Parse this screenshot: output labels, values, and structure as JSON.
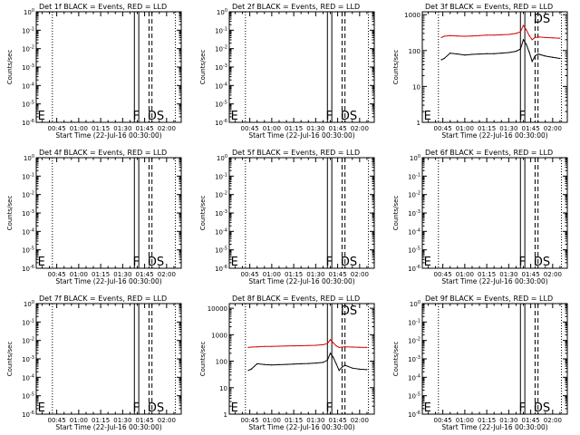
{
  "colors": {
    "events": "#000000",
    "lld": "#d40000",
    "axis": "#000000",
    "background": "#ffffff"
  },
  "chart_data": [
    {
      "type": "line",
      "detector": "1f",
      "title": "Det 1f BLACK = Events, RED = LLD",
      "xlabel": "Start Time (22-Jul-16 00:30:00)",
      "ylabel": "Counts/sec",
      "x_tick_labels": [
        "00:45",
        "01:00",
        "01:15",
        "01:30",
        "01:45",
        "02:00"
      ],
      "y_tick_labels": [
        "10^-6",
        "10^-5",
        "10^-4",
        "10^-3",
        "10^-2",
        "10^-1",
        "10^0"
      ],
      "y_scale": "log",
      "ylim": [
        1e-06,
        1
      ],
      "xlim": [
        "00:31",
        "02:10"
      ],
      "solid_markers": [
        "01:38",
        "01:41"
      ],
      "dashed_markers": [
        "01:48",
        "01:50"
      ],
      "dotted_markers": [
        "00:42",
        "02:06"
      ],
      "marker_labels": [
        {
          "text": "E",
          "x": "00:32"
        },
        {
          "text": "F",
          "x": "01:37"
        },
        {
          "text": "DS",
          "x": "01:47"
        }
      ],
      "series": []
    },
    {
      "type": "line",
      "detector": "2f",
      "title": "Det 2f BLACK = Events, RED = LLD",
      "xlabel": "Start Time (22-Jul-16 00:30:00)",
      "ylabel": "Counts/sec",
      "x_tick_labels": [
        "00:45",
        "01:00",
        "01:15",
        "01:30",
        "01:45",
        "02:00"
      ],
      "y_tick_labels": [
        "10^-6",
        "10^-5",
        "10^-4",
        "10^-3",
        "10^-2",
        "10^-1",
        "10^0"
      ],
      "y_scale": "log",
      "ylim": [
        1e-06,
        1
      ],
      "xlim": [
        "00:31",
        "02:10"
      ],
      "solid_markers": [
        "01:38",
        "01:41"
      ],
      "dashed_markers": [
        "01:48",
        "01:50"
      ],
      "dotted_markers": [
        "00:42",
        "02:06"
      ],
      "marker_labels": [
        {
          "text": "E",
          "x": "00:32"
        },
        {
          "text": "F",
          "x": "01:37"
        },
        {
          "text": "DS",
          "x": "01:47"
        }
      ],
      "series": []
    },
    {
      "type": "line",
      "detector": "3f",
      "title": "Det 3f BLACK = Events, RED = LLD",
      "xlabel": "Start Time (22-Jul-16 00:30:00)",
      "ylabel": "Counts/sec",
      "x_tick_labels": [
        "00:45",
        "01:00",
        "01:15",
        "01:30",
        "01:45",
        "02:00"
      ],
      "y_tick_labels": [
        "1",
        "10",
        "100",
        "1000"
      ],
      "y_scale": "log",
      "ylim": [
        1,
        1200
      ],
      "xlim": [
        "00:31",
        "02:10"
      ],
      "solid_markers": [
        "01:38",
        "01:41"
      ],
      "dashed_markers": [
        "01:48",
        "01:50"
      ],
      "dotted_markers": [
        "00:42",
        "02:06"
      ],
      "marker_labels": [
        {
          "text": "E",
          "x": "00:32"
        },
        {
          "text": "F",
          "x": "01:37"
        },
        {
          "text": "DS",
          "x": "01:47"
        }
      ],
      "series": [
        {
          "color": "lld",
          "x": [
            "00:44",
            "00:46",
            "00:50",
            "00:55",
            "01:00",
            "01:05",
            "01:10",
            "01:15",
            "01:20",
            "01:25",
            "01:30",
            "01:35",
            "01:38",
            "01:40",
            "01:42",
            "01:44",
            "01:46",
            "01:48",
            "01:50",
            "01:55",
            "02:00",
            "02:05"
          ],
          "values": [
            230,
            250,
            260,
            255,
            250,
            255,
            260,
            270,
            270,
            275,
            280,
            300,
            330,
            500,
            380,
            260,
            200,
            230,
            240,
            230,
            225,
            220
          ]
        },
        {
          "color": "events",
          "x": [
            "00:44",
            "00:46",
            "00:50",
            "00:55",
            "01:00",
            "01:05",
            "01:10",
            "01:15",
            "01:20",
            "01:25",
            "01:30",
            "01:35",
            "01:38",
            "01:40",
            "01:42",
            "01:44",
            "01:46",
            "01:48",
            "01:50",
            "01:55",
            "02:00",
            "02:05"
          ],
          "values": [
            55,
            60,
            85,
            80,
            75,
            78,
            80,
            82,
            82,
            85,
            88,
            95,
            110,
            200,
            150,
            90,
            50,
            70,
            80,
            70,
            65,
            60
          ]
        }
      ]
    },
    {
      "type": "line",
      "detector": "4f",
      "title": "Det 4f BLACK = Events, RED = LLD",
      "xlabel": "Start Time (22-Jul-16 00:30:00)",
      "ylabel": "Counts/sec",
      "x_tick_labels": [
        "00:45",
        "01:00",
        "01:15",
        "01:30",
        "01:45",
        "02:00"
      ],
      "y_tick_labels": [
        "10^-6",
        "10^-5",
        "10^-4",
        "10^-3",
        "10^-2",
        "10^-1",
        "10^0"
      ],
      "y_scale": "log",
      "ylim": [
        1e-06,
        1
      ],
      "xlim": [
        "00:31",
        "02:10"
      ],
      "solid_markers": [
        "01:38",
        "01:41"
      ],
      "dashed_markers": [
        "01:48",
        "01:50"
      ],
      "dotted_markers": [
        "00:42",
        "02:06"
      ],
      "marker_labels": [
        {
          "text": "E",
          "x": "00:32"
        },
        {
          "text": "F",
          "x": "01:37"
        },
        {
          "text": "DS",
          "x": "01:47"
        }
      ],
      "series": []
    },
    {
      "type": "line",
      "detector": "5f",
      "title": "Det 5f BLACK = Events, RED = LLD",
      "xlabel": "Start Time (22-Jul-16 00:30:00)",
      "ylabel": "Counts/sec",
      "x_tick_labels": [
        "00:45",
        "01:00",
        "01:15",
        "01:30",
        "01:45",
        "02:00"
      ],
      "y_tick_labels": [
        "10^-6",
        "10^-5",
        "10^-4",
        "10^-3",
        "10^-2",
        "10^-1",
        "10^0"
      ],
      "y_scale": "log",
      "ylim": [
        1e-06,
        1
      ],
      "xlim": [
        "00:31",
        "02:10"
      ],
      "solid_markers": [
        "01:38",
        "01:41"
      ],
      "dashed_markers": [
        "01:48",
        "01:50"
      ],
      "dotted_markers": [
        "00:42",
        "02:06"
      ],
      "marker_labels": [
        {
          "text": "E",
          "x": "00:32"
        },
        {
          "text": "F",
          "x": "01:37"
        },
        {
          "text": "DS",
          "x": "01:47"
        }
      ],
      "series": []
    },
    {
      "type": "line",
      "detector": "6f",
      "title": "Det 6f BLACK = Events, RED = LLD",
      "xlabel": "Start Time (22-Jul-16 00:30:00)",
      "ylabel": "Counts/sec",
      "x_tick_labels": [
        "00:45",
        "01:00",
        "01:15",
        "01:30",
        "01:45",
        "02:00"
      ],
      "y_tick_labels": [
        "10^-6",
        "10^-5",
        "10^-4",
        "10^-3",
        "10^-2",
        "10^-1",
        "10^0"
      ],
      "y_scale": "log",
      "ylim": [
        1e-06,
        1
      ],
      "xlim": [
        "00:31",
        "02:10"
      ],
      "solid_markers": [
        "01:38",
        "01:41"
      ],
      "dashed_markers": [
        "01:48",
        "01:50"
      ],
      "dotted_markers": [
        "00:42",
        "02:06"
      ],
      "marker_labels": [
        {
          "text": "E",
          "x": "00:32"
        },
        {
          "text": "F",
          "x": "01:37"
        },
        {
          "text": "DS",
          "x": "01:47"
        }
      ],
      "series": []
    },
    {
      "type": "line",
      "detector": "7f",
      "title": "Det 7f BLACK = Events, RED = LLD",
      "xlabel": "Start Time (22-Jul-16 00:30:00)",
      "ylabel": "Counts/sec",
      "x_tick_labels": [
        "00:45",
        "01:00",
        "01:15",
        "01:30",
        "01:45",
        "02:00"
      ],
      "y_tick_labels": [
        "10^-6",
        "10^-5",
        "10^-4",
        "10^-3",
        "10^-2",
        "10^-1",
        "10^0"
      ],
      "y_scale": "log",
      "ylim": [
        1e-06,
        1
      ],
      "xlim": [
        "00:31",
        "02:10"
      ],
      "solid_markers": [
        "01:38",
        "01:41"
      ],
      "dashed_markers": [
        "01:48",
        "01:50"
      ],
      "dotted_markers": [
        "00:42",
        "02:06"
      ],
      "marker_labels": [
        {
          "text": "E",
          "x": "00:32"
        },
        {
          "text": "F",
          "x": "01:37"
        },
        {
          "text": "DS",
          "x": "01:47"
        }
      ],
      "series": []
    },
    {
      "type": "line",
      "detector": "8f",
      "title": "Det 8f BLACK = Events, RED = LLD",
      "xlabel": "Start Time (22-Jul-16 00:30:00)",
      "ylabel": "Counts/sec",
      "x_tick_labels": [
        "00:45",
        "01:00",
        "01:15",
        "01:30",
        "01:45",
        "02:00"
      ],
      "y_tick_labels": [
        "1",
        "10",
        "100",
        "1000",
        "10000"
      ],
      "y_scale": "log",
      "ylim": [
        1,
        15000
      ],
      "xlim": [
        "00:31",
        "02:10"
      ],
      "solid_markers": [
        "01:38",
        "01:41"
      ],
      "dashed_markers": [
        "01:48",
        "01:50"
      ],
      "dotted_markers": [
        "00:42",
        "02:06"
      ],
      "marker_labels": [
        {
          "text": "E",
          "x": "00:32"
        },
        {
          "text": "F",
          "x": "01:37"
        },
        {
          "text": "DS",
          "x": "01:47"
        }
      ],
      "series": [
        {
          "color": "lld",
          "x": [
            "00:44",
            "00:46",
            "00:50",
            "00:55",
            "01:00",
            "01:05",
            "01:10",
            "01:15",
            "01:20",
            "01:25",
            "01:30",
            "01:35",
            "01:38",
            "01:40",
            "01:42",
            "01:44",
            "01:46",
            "01:48",
            "01:50",
            "01:55",
            "02:00",
            "02:05"
          ],
          "values": [
            330,
            340,
            350,
            360,
            360,
            370,
            375,
            380,
            385,
            390,
            400,
            420,
            460,
            650,
            500,
            380,
            330,
            340,
            350,
            340,
            335,
            330
          ]
        },
        {
          "color": "events",
          "x": [
            "00:44",
            "00:46",
            "00:50",
            "00:55",
            "01:00",
            "01:05",
            "01:10",
            "01:15",
            "01:20",
            "01:25",
            "01:30",
            "01:35",
            "01:38",
            "01:40",
            "01:42",
            "01:44",
            "01:46",
            "01:48",
            "01:50",
            "01:55",
            "02:00",
            "02:05"
          ],
          "values": [
            45,
            50,
            80,
            75,
            72,
            74,
            76,
            78,
            80,
            82,
            85,
            90,
            110,
            200,
            140,
            80,
            45,
            60,
            70,
            55,
            50,
            48
          ]
        }
      ]
    },
    {
      "type": "line",
      "detector": "9f",
      "title": "Det 9f BLACK = Events, RED = LLD",
      "xlabel": "Start Time (22-Jul-16 00:30:00)",
      "ylabel": "Counts/sec",
      "x_tick_labels": [
        "00:45",
        "01:00",
        "01:15",
        "01:30",
        "01:45",
        "02:00"
      ],
      "y_tick_labels": [
        "10^-6",
        "10^-5",
        "10^-4",
        "10^-3",
        "10^-2",
        "10^-1",
        "10^0"
      ],
      "y_scale": "log",
      "ylim": [
        1e-06,
        1
      ],
      "xlim": [
        "00:31",
        "02:10"
      ],
      "solid_markers": [
        "01:38",
        "01:41"
      ],
      "dashed_markers": [
        "01:48",
        "01:50"
      ],
      "dotted_markers": [
        "00:42",
        "02:06"
      ],
      "marker_labels": [
        {
          "text": "E",
          "x": "00:32"
        },
        {
          "text": "F",
          "x": "01:37"
        },
        {
          "text": "DS",
          "x": "01:47"
        }
      ],
      "series": []
    }
  ]
}
